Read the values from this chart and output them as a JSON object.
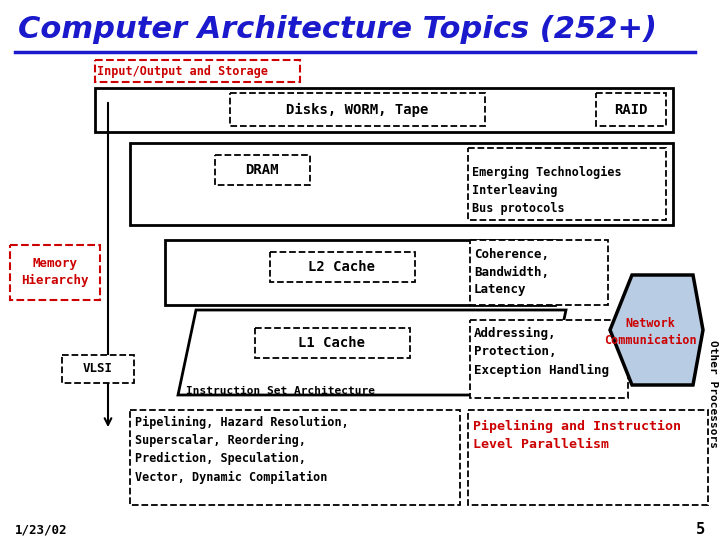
{
  "title": "Computer Architecture Topics (252+)",
  "title_color": "#1a1acc",
  "title_fontsize": 22,
  "bg_color": "#ffffff",
  "label_io": "Input/Output and Storage",
  "label_disks": "Disks, WORM, Tape",
  "label_raid": "RAID",
  "label_emerging": "Emerging Technologies\nInterleaving\nBus protocols",
  "label_dram": "DRAM",
  "label_memory": "Memory\nHierarchy",
  "label_l2": "L2 Cache",
  "label_coherence": "Coherence,\nBandwidth,\nLatency",
  "label_vlsi": "VLSI",
  "label_l1": "L1 Cache",
  "label_isa": "Instruction Set Architecture",
  "label_addressing": "Addressing,\nProtection,\nException Handling",
  "label_network": "Network\nCommunication",
  "label_other": "Other Processors",
  "label_pipelining": "Pipelining, Hazard Resolution,\nSuperscalar, Reordering,\nPrediction, Speculation,\nVector, Dynamic Compilation",
  "label_ilp": "Pipelining and Instruction\nLevel Parallelism",
  "label_date": "1/23/02",
  "label_page": "5",
  "red_color": "#cc0000",
  "black_color": "#000000",
  "dark_blue": "#1a1acc",
  "light_blue_fill": "#b8cce4"
}
